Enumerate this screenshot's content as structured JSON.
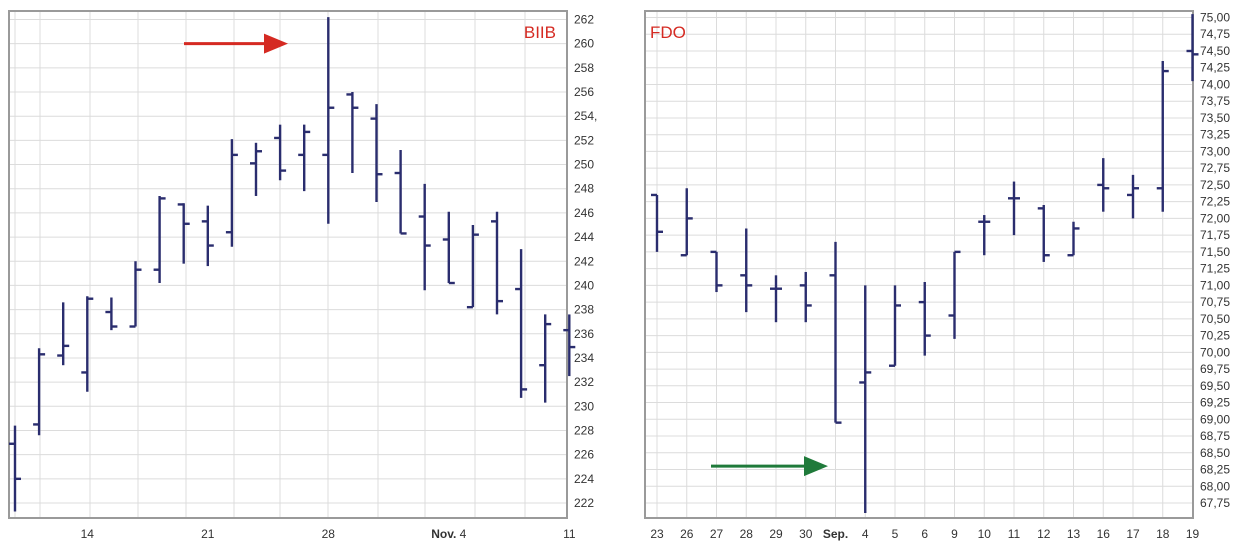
{
  "colors": {
    "bar": "#2a2d6e",
    "symbol": "#d52a22",
    "arrow_red": "#d52a22",
    "arrow_green": "#1f7a3a",
    "grid": "#dcdcdc",
    "frame": "#9a9a9a"
  },
  "chart_data": [
    {
      "type": "ohlc",
      "title": "BIIB",
      "ylim": [
        220,
        263
      ],
      "yticks": [
        222,
        224,
        226,
        228,
        230,
        232,
        234,
        236,
        238,
        240,
        242,
        244,
        246,
        248,
        250,
        252,
        254,
        256,
        258,
        260,
        262
      ],
      "ytick_labels": [
        "222",
        "224",
        "226",
        "228",
        "230",
        "232",
        "234",
        "236",
        "238",
        "240",
        "242",
        "244",
        "246",
        "248",
        "250",
        "252",
        "254,",
        "256",
        "258",
        "260",
        "262"
      ],
      "xlabels": [
        {
          "label": "14",
          "bar": 3
        },
        {
          "label": "21",
          "bar": 8
        },
        {
          "label": "28",
          "bar": 13
        },
        {
          "label": "Nov. 4",
          "bar": 18
        },
        {
          "label": "11",
          "bar": 23
        }
      ],
      "bars": [
        {
          "o": 226.9,
          "h": 228.4,
          "l": 221.3,
          "c": 224.0
        },
        {
          "o": 228.5,
          "h": 234.8,
          "l": 227.6,
          "c": 234.3
        },
        {
          "o": 234.2,
          "h": 238.6,
          "l": 233.4,
          "c": 235.0
        },
        {
          "o": 232.8,
          "h": 239.1,
          "l": 231.2,
          "c": 238.9
        },
        {
          "o": 237.8,
          "h": 239.0,
          "l": 236.3,
          "c": 236.6
        },
        {
          "o": 236.6,
          "h": 242.0,
          "l": 236.6,
          "c": 241.3
        },
        {
          "o": 241.3,
          "h": 247.4,
          "l": 240.2,
          "c": 247.2
        },
        {
          "o": 246.7,
          "h": 246.8,
          "l": 241.8,
          "c": 245.1
        },
        {
          "o": 245.3,
          "h": 246.6,
          "l": 241.6,
          "c": 243.3
        },
        {
          "o": 244.4,
          "h": 252.1,
          "l": 243.2,
          "c": 250.8
        },
        {
          "o": 250.1,
          "h": 251.8,
          "l": 247.4,
          "c": 251.1
        },
        {
          "o": 252.2,
          "h": 253.3,
          "l": 248.7,
          "c": 249.5
        },
        {
          "o": 250.8,
          "h": 253.3,
          "l": 247.8,
          "c": 252.7
        },
        {
          "o": 250.8,
          "h": 262.2,
          "l": 245.1,
          "c": 254.7
        },
        {
          "o": 255.8,
          "h": 256.0,
          "l": 249.3,
          "c": 254.7
        },
        {
          "o": 253.8,
          "h": 255.0,
          "l": 246.9,
          "c": 249.2
        },
        {
          "o": 249.3,
          "h": 251.2,
          "l": 244.3,
          "c": 244.3
        },
        {
          "o": 245.7,
          "h": 248.4,
          "l": 239.6,
          "c": 243.3
        },
        {
          "o": 243.8,
          "h": 246.1,
          "l": 240.2,
          "c": 240.2
        },
        {
          "o": 238.2,
          "h": 245.0,
          "l": 238.2,
          "c": 244.2
        },
        {
          "o": 245.3,
          "h": 246.1,
          "l": 237.6,
          "c": 238.7
        },
        {
          "o": 239.7,
          "h": 243.0,
          "l": 230.7,
          "c": 231.4
        },
        {
          "o": 233.4,
          "h": 237.6,
          "l": 230.3,
          "c": 236.8
        },
        {
          "o": 236.3,
          "h": 237.6,
          "l": 232.5,
          "c": 234.9
        }
      ],
      "annotation": {
        "type": "arrow",
        "color": "red",
        "y": 260.0
      }
    },
    {
      "type": "ohlc",
      "title": "FDO",
      "ylim": [
        67.5,
        75.15
      ],
      "yticks": [
        67.75,
        68.0,
        68.25,
        68.5,
        68.75,
        69.0,
        69.25,
        69.5,
        69.75,
        70.0,
        70.25,
        70.5,
        70.75,
        71.0,
        71.25,
        71.5,
        71.75,
        72.0,
        72.25,
        72.5,
        72.75,
        73.0,
        73.25,
        73.5,
        73.75,
        74.0,
        74.25,
        74.5,
        74.75,
        75.0
      ],
      "ytick_labels": [
        "67,75",
        "68,00",
        "68,25",
        "68,50",
        "68,75",
        "69,00",
        "69,25",
        "69,50",
        "69,75",
        "70,00",
        "70,25",
        "70,50",
        "70,75",
        "71,00",
        "71,25",
        "71,50",
        "71,75",
        "72,00",
        "72,25",
        "72,50",
        "72,75",
        "73,00",
        "73,25",
        "73,50",
        "73,75",
        "74,00",
        "74,25",
        "74,50",
        "74,75",
        "75,00"
      ],
      "xlabels": [
        {
          "label": "23",
          "bar": 0
        },
        {
          "label": "26",
          "bar": 1
        },
        {
          "label": "27",
          "bar": 2
        },
        {
          "label": "28",
          "bar": 3
        },
        {
          "label": "29",
          "bar": 4
        },
        {
          "label": "30",
          "bar": 5
        },
        {
          "label": "Sep.",
          "bar": 6
        },
        {
          "label": "4",
          "bar": 7
        },
        {
          "label": "5",
          "bar": 8
        },
        {
          "label": "6",
          "bar": 9
        },
        {
          "label": "9",
          "bar": 10
        },
        {
          "label": "10",
          "bar": 11
        },
        {
          "label": "11",
          "bar": 12
        },
        {
          "label": "12",
          "bar": 13
        },
        {
          "label": "13",
          "bar": 14
        },
        {
          "label": "16",
          "bar": 15
        },
        {
          "label": "17",
          "bar": 16
        },
        {
          "label": "18",
          "bar": 17
        },
        {
          "label": "19",
          "bar": 18
        }
      ],
      "bars": [
        {
          "o": 72.35,
          "h": 72.35,
          "l": 71.5,
          "c": 71.8
        },
        {
          "o": 71.45,
          "h": 72.45,
          "l": 71.45,
          "c": 72.0
        },
        {
          "o": 71.5,
          "h": 71.5,
          "l": 70.9,
          "c": 71.0
        },
        {
          "o": 71.15,
          "h": 71.85,
          "l": 70.6,
          "c": 71.0
        },
        {
          "o": 70.95,
          "h": 71.15,
          "l": 70.45,
          "c": 70.95
        },
        {
          "o": 71.0,
          "h": 71.2,
          "l": 70.45,
          "c": 70.7
        },
        {
          "o": 71.15,
          "h": 71.65,
          "l": 68.95,
          "c": 68.95
        },
        {
          "o": 69.55,
          "h": 71.0,
          "l": 67.6,
          "c": 69.7
        },
        {
          "o": 69.8,
          "h": 71.0,
          "l": 69.8,
          "c": 70.7
        },
        {
          "o": 70.75,
          "h": 71.05,
          "l": 69.95,
          "c": 70.25
        },
        {
          "o": 70.55,
          "h": 71.5,
          "l": 70.2,
          "c": 71.5
        },
        {
          "o": 71.95,
          "h": 72.05,
          "l": 71.45,
          "c": 71.95
        },
        {
          "o": 72.3,
          "h": 72.55,
          "l": 71.75,
          "c": 72.3
        },
        {
          "o": 72.15,
          "h": 72.2,
          "l": 71.35,
          "c": 71.45
        },
        {
          "o": 71.45,
          "h": 71.95,
          "l": 71.45,
          "c": 71.85
        },
        {
          "o": 72.5,
          "h": 72.9,
          "l": 72.1,
          "c": 72.45
        },
        {
          "o": 72.35,
          "h": 72.65,
          "l": 72.0,
          "c": 72.45
        },
        {
          "o": 72.45,
          "h": 74.35,
          "l": 72.1,
          "c": 74.2
        },
        {
          "o": 74.5,
          "h": 75.05,
          "l": 74.05,
          "c": 74.45
        }
      ],
      "annotation": {
        "type": "arrow",
        "color": "green",
        "y": 68.3
      }
    }
  ]
}
